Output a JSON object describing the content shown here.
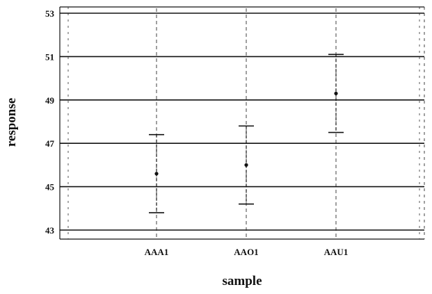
{
  "chart_data": {
    "type": "scatter",
    "xlabel": "sample",
    "ylabel": "response",
    "categories": [
      "AAA1",
      "AAO1",
      "AAU1"
    ],
    "ylim": [
      43,
      53
    ],
    "yticks": [
      43,
      45,
      47,
      49,
      51,
      53
    ],
    "grid": "horizontal",
    "series": [
      {
        "values": [
          45.6,
          46.0,
          49.3
        ],
        "upper": [
          47.4,
          47.8,
          51.1
        ],
        "lower": [
          43.8,
          44.2,
          47.5
        ]
      }
    ],
    "colors": {
      "ink": "#111111",
      "background": "#ffffff"
    }
  }
}
